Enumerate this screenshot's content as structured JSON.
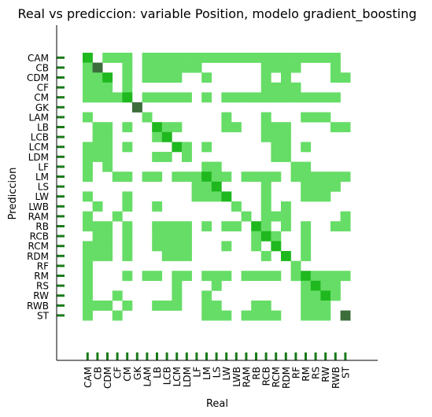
{
  "chart_data": {
    "type": "heatmap",
    "title": "Real vs prediccion: variable Position, modelo gradient_boosting",
    "xlabel": "Real",
    "ylabel": "Prediccion",
    "categories": [
      "CAM",
      "CB",
      "CDM",
      "CF",
      "CM",
      "GK",
      "LAM",
      "LB",
      "LCB",
      "LCM",
      "LDM",
      "LF",
      "LM",
      "LS",
      "LW",
      "LWB",
      "RAM",
      "RB",
      "RCB",
      "RCM",
      "RDM",
      "RF",
      "RM",
      "RS",
      "RW",
      "RWB",
      "ST"
    ],
    "levels": {
      "0": "#ffffff",
      "1": "#66dd66",
      "2": "#1fb81f",
      "3": "#3c6e3c"
    },
    "grid": false,
    "rows": [
      [
        "CAM",
        [
          0,
          2
        ],
        [
          2,
          1
        ],
        [
          3,
          1
        ],
        [
          4,
          1
        ],
        [
          6,
          1
        ],
        [
          7,
          1
        ],
        [
          8,
          1
        ],
        [
          9,
          1
        ],
        [
          10,
          1
        ],
        [
          11,
          1
        ],
        [
          12,
          1
        ],
        [
          13,
          1
        ],
        [
          14,
          1
        ],
        [
          15,
          1
        ],
        [
          16,
          1
        ],
        [
          17,
          1
        ],
        [
          18,
          1
        ],
        [
          19,
          1
        ],
        [
          20,
          1
        ],
        [
          21,
          1
        ],
        [
          22,
          1
        ],
        [
          23,
          1
        ],
        [
          24,
          1
        ],
        [
          25,
          1
        ]
      ],
      [
        "CB",
        [
          0,
          1
        ],
        [
          1,
          3
        ],
        [
          4,
          1
        ],
        [
          6,
          1
        ],
        [
          7,
          1
        ],
        [
          8,
          1
        ],
        [
          9,
          1
        ],
        [
          10,
          1
        ],
        [
          11,
          1
        ],
        [
          18,
          1
        ],
        [
          19,
          1
        ],
        [
          20,
          1
        ],
        [
          21,
          1
        ],
        [
          25,
          1
        ]
      ],
      [
        "CDM",
        [
          0,
          1
        ],
        [
          1,
          1
        ],
        [
          2,
          2
        ],
        [
          4,
          1
        ],
        [
          6,
          1
        ],
        [
          7,
          1
        ],
        [
          8,
          1
        ],
        [
          9,
          1
        ],
        [
          12,
          1
        ],
        [
          18,
          1
        ],
        [
          20,
          1
        ],
        [
          25,
          1
        ],
        [
          26,
          1
        ]
      ],
      [
        "CF",
        [
          0,
          1
        ],
        [
          1,
          1
        ],
        [
          2,
          1
        ],
        [
          4,
          1
        ],
        [
          18,
          1
        ],
        [
          19,
          1
        ],
        [
          20,
          1
        ],
        [
          21,
          1
        ]
      ],
      [
        "CM",
        [
          0,
          1
        ],
        [
          1,
          1
        ],
        [
          2,
          1
        ],
        [
          3,
          1
        ],
        [
          4,
          2
        ],
        [
          6,
          1
        ],
        [
          7,
          1
        ],
        [
          8,
          1
        ],
        [
          9,
          1
        ],
        [
          10,
          1
        ],
        [
          12,
          1
        ],
        [
          14,
          1
        ],
        [
          15,
          1
        ],
        [
          16,
          1
        ],
        [
          17,
          1
        ],
        [
          18,
          1
        ],
        [
          19,
          1
        ],
        [
          20,
          1
        ],
        [
          21,
          1
        ],
        [
          22,
          1
        ],
        [
          23,
          1
        ],
        [
          24,
          1
        ],
        [
          25,
          1
        ]
      ],
      [
        "GK",
        [
          5,
          3
        ]
      ],
      [
        "LAM",
        [
          0,
          1
        ],
        [
          6,
          1
        ],
        [
          14,
          1
        ],
        [
          18,
          1
        ],
        [
          22,
          1
        ],
        [
          23,
          1
        ],
        [
          24,
          1
        ]
      ],
      [
        "LB",
        [
          1,
          1
        ],
        [
          2,
          1
        ],
        [
          4,
          1
        ],
        [
          7,
          2
        ],
        [
          8,
          1
        ],
        [
          9,
          1
        ],
        [
          14,
          1
        ],
        [
          15,
          1
        ],
        [
          18,
          1
        ],
        [
          19,
          1
        ],
        [
          20,
          1
        ],
        [
          25,
          1
        ],
        [
          26,
          1
        ]
      ],
      [
        "LCB",
        [
          1,
          1
        ],
        [
          2,
          1
        ],
        [
          7,
          1
        ],
        [
          8,
          2
        ],
        [
          18,
          1
        ],
        [
          19,
          1
        ],
        [
          20,
          1
        ]
      ],
      [
        "LCM",
        [
          0,
          1
        ],
        [
          1,
          1
        ],
        [
          2,
          1
        ],
        [
          4,
          1
        ],
        [
          9,
          2
        ],
        [
          10,
          1
        ],
        [
          12,
          1
        ],
        [
          19,
          1
        ],
        [
          20,
          1
        ],
        [
          22,
          1
        ]
      ],
      [
        "LDM",
        [
          0,
          1
        ],
        [
          1,
          1
        ],
        [
          2,
          1
        ],
        [
          7,
          1
        ],
        [
          8,
          1
        ],
        [
          10,
          1
        ],
        [
          19,
          1
        ],
        [
          20,
          1
        ]
      ],
      [
        "LF",
        [
          0,
          1
        ],
        [
          2,
          1
        ],
        [
          12,
          1
        ],
        [
          13,
          1
        ],
        [
          21,
          1
        ],
        [
          22,
          1
        ]
      ],
      [
        "LM",
        [
          0,
          1
        ],
        [
          3,
          1
        ],
        [
          4,
          1
        ],
        [
          6,
          1
        ],
        [
          7,
          1
        ],
        [
          9,
          1
        ],
        [
          10,
          1
        ],
        [
          11,
          1
        ],
        [
          12,
          2
        ],
        [
          13,
          1
        ],
        [
          14,
          1
        ],
        [
          16,
          1
        ],
        [
          17,
          1
        ],
        [
          18,
          1
        ],
        [
          19,
          1
        ],
        [
          21,
          1
        ],
        [
          22,
          1
        ],
        [
          23,
          1
        ],
        [
          24,
          1
        ],
        [
          25,
          1
        ],
        [
          26,
          1
        ]
      ],
      [
        "LS",
        [
          11,
          1
        ],
        [
          12,
          1
        ],
        [
          13,
          2
        ],
        [
          18,
          1
        ],
        [
          22,
          1
        ],
        [
          23,
          1
        ],
        [
          24,
          1
        ],
        [
          25,
          1
        ]
      ],
      [
        "LW",
        [
          0,
          1
        ],
        [
          4,
          1
        ],
        [
          11,
          1
        ],
        [
          12,
          1
        ],
        [
          13,
          1
        ],
        [
          14,
          2
        ],
        [
          18,
          1
        ],
        [
          22,
          1
        ],
        [
          23,
          1
        ],
        [
          24,
          1
        ]
      ],
      [
        "LWB",
        [
          1,
          1
        ],
        [
          4,
          1
        ],
        [
          7,
          1
        ],
        [
          15,
          1
        ],
        [
          18,
          1
        ],
        [
          20,
          1
        ]
      ],
      [
        "RAM",
        [
          0,
          1
        ],
        [
          3,
          1
        ],
        [
          16,
          1
        ],
        [
          18,
          1
        ],
        [
          19,
          1
        ],
        [
          20,
          1
        ],
        [
          26,
          1
        ]
      ],
      [
        "RB",
        [
          0,
          1
        ],
        [
          1,
          1
        ],
        [
          2,
          1
        ],
        [
          4,
          1
        ],
        [
          7,
          1
        ],
        [
          8,
          1
        ],
        [
          9,
          1
        ],
        [
          10,
          1
        ],
        [
          12,
          1
        ],
        [
          14,
          1
        ],
        [
          15,
          1
        ],
        [
          17,
          2
        ],
        [
          18,
          1
        ],
        [
          20,
          1
        ],
        [
          22,
          1
        ],
        [
          25,
          1
        ],
        [
          26,
          1
        ]
      ],
      [
        "RCB",
        [
          1,
          1
        ],
        [
          2,
          1
        ],
        [
          4,
          1
        ],
        [
          7,
          1
        ],
        [
          8,
          1
        ],
        [
          9,
          1
        ],
        [
          10,
          1
        ],
        [
          17,
          1
        ],
        [
          18,
          2
        ],
        [
          19,
          1
        ],
        [
          22,
          1
        ]
      ],
      [
        "RCM",
        [
          0,
          1
        ],
        [
          1,
          1
        ],
        [
          2,
          1
        ],
        [
          4,
          1
        ],
        [
          7,
          1
        ],
        [
          8,
          1
        ],
        [
          9,
          1
        ],
        [
          10,
          1
        ],
        [
          14,
          1
        ],
        [
          17,
          1
        ],
        [
          19,
          2
        ],
        [
          22,
          1
        ]
      ],
      [
        "RDM",
        [
          0,
          1
        ],
        [
          1,
          1
        ],
        [
          2,
          1
        ],
        [
          4,
          1
        ],
        [
          8,
          1
        ],
        [
          9,
          1
        ],
        [
          10,
          1
        ],
        [
          18,
          1
        ],
        [
          20,
          2
        ],
        [
          22,
          1
        ]
      ],
      [
        "RF",
        [
          0,
          1
        ],
        [
          21,
          1
        ]
      ],
      [
        "RM",
        [
          0,
          1
        ],
        [
          4,
          1
        ],
        [
          6,
          1
        ],
        [
          7,
          1
        ],
        [
          9,
          1
        ],
        [
          10,
          1
        ],
        [
          12,
          1
        ],
        [
          13,
          1
        ],
        [
          14,
          1
        ],
        [
          16,
          1
        ],
        [
          17,
          1
        ],
        [
          18,
          1
        ],
        [
          19,
          1
        ],
        [
          21,
          1
        ],
        [
          22,
          2
        ],
        [
          23,
          1
        ],
        [
          24,
          1
        ],
        [
          25,
          1
        ],
        [
          26,
          1
        ]
      ],
      [
        "RS",
        [
          0,
          1
        ],
        [
          9,
          1
        ],
        [
          13,
          1
        ],
        [
          22,
          1
        ],
        [
          23,
          2
        ],
        [
          24,
          1
        ],
        [
          25,
          1
        ]
      ],
      [
        "RW",
        [
          0,
          1
        ],
        [
          3,
          1
        ],
        [
          9,
          1
        ],
        [
          12,
          1
        ],
        [
          22,
          1
        ],
        [
          23,
          1
        ],
        [
          24,
          2
        ],
        [
          25,
          1
        ]
      ],
      [
        "RWB",
        [
          0,
          1
        ],
        [
          1,
          1
        ],
        [
          2,
          1
        ],
        [
          4,
          1
        ],
        [
          7,
          1
        ],
        [
          8,
          1
        ],
        [
          9,
          1
        ],
        [
          12,
          1
        ],
        [
          13,
          1
        ],
        [
          17,
          1
        ],
        [
          18,
          1
        ],
        [
          22,
          1
        ],
        [
          23,
          1
        ],
        [
          24,
          1
        ]
      ],
      [
        "ST",
        [
          0,
          1
        ],
        [
          3,
          1
        ],
        [
          12,
          1
        ],
        [
          13,
          1
        ],
        [
          14,
          1
        ],
        [
          16,
          1
        ],
        [
          17,
          1
        ],
        [
          18,
          1
        ],
        [
          19,
          1
        ],
        [
          22,
          1
        ],
        [
          23,
          1
        ],
        [
          24,
          1
        ],
        [
          26,
          3
        ]
      ]
    ]
  }
}
